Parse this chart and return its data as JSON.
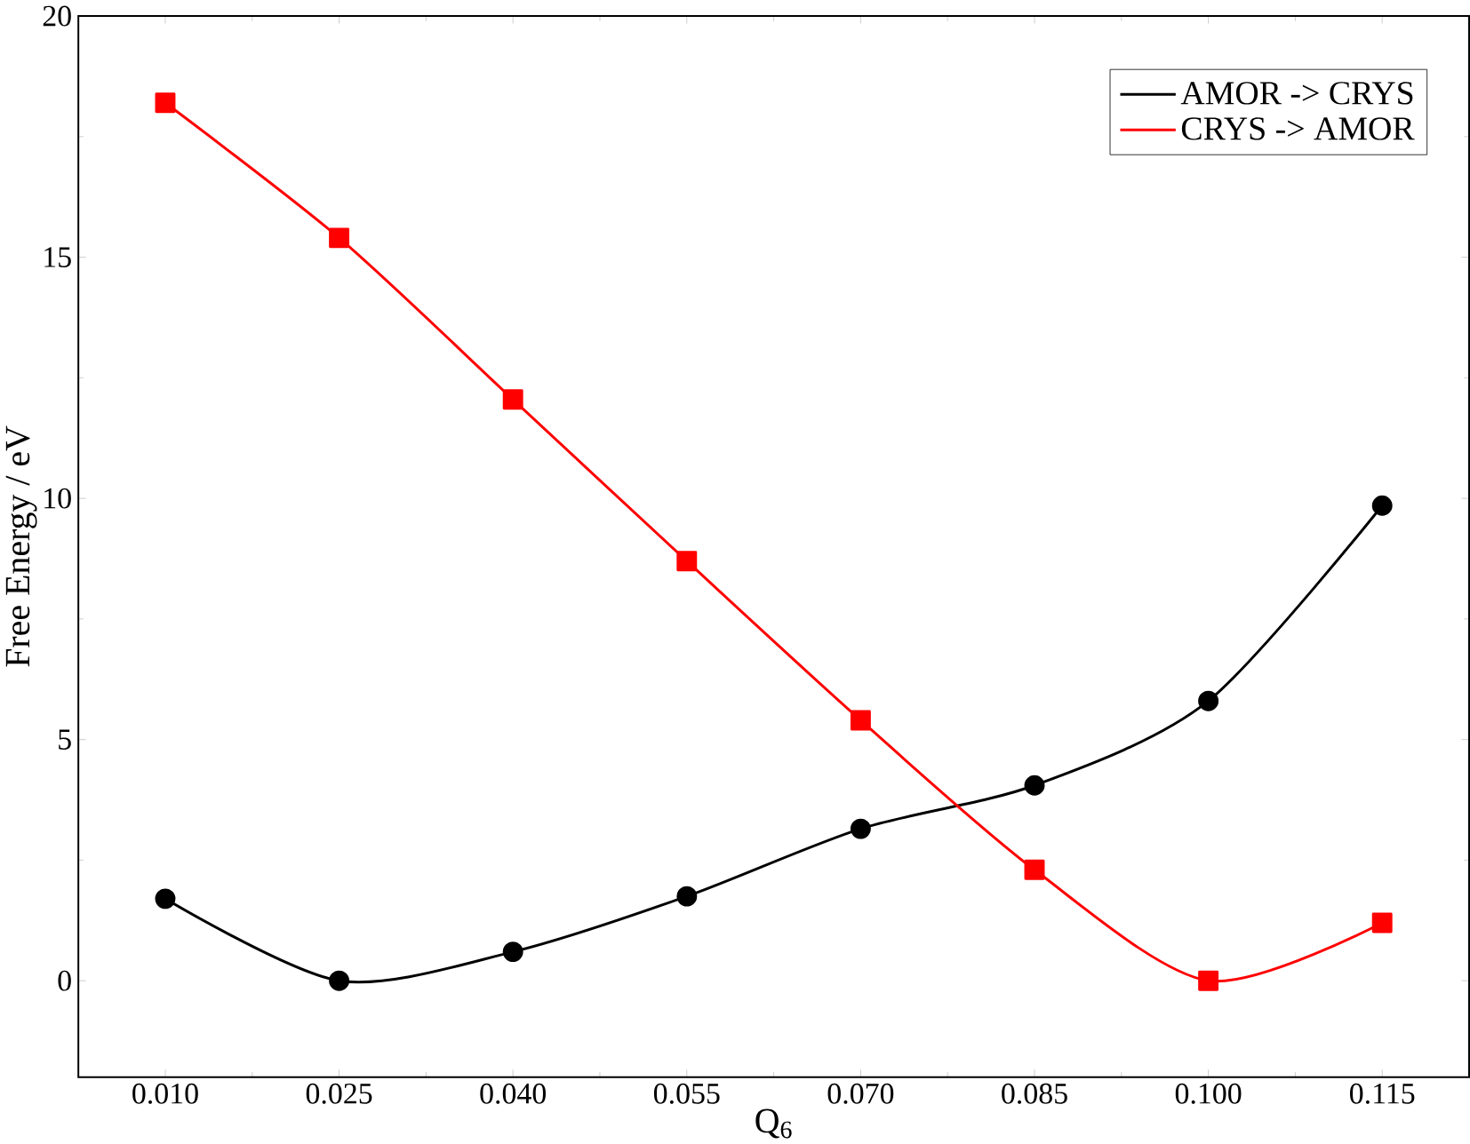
{
  "chart_data": {
    "type": "line",
    "xlabel": "Q$_{6}$",
    "ylabel": "Free Energy / eV",
    "x": [
      0.01,
      0.025,
      0.04,
      0.055,
      0.07,
      0.085,
      0.1,
      0.115
    ],
    "series": [
      {
        "name": "AMOR -> CRYS",
        "color": "#000000",
        "marker": "circle",
        "values": [
          1.7,
          0,
          0.6,
          1.75,
          3.15,
          4.05,
          5.8,
          9.85
        ]
      },
      {
        "name": "CRYS   -> AMOR",
        "color": "#ff0000",
        "marker": "square",
        "values": [
          18.2,
          15.4,
          12.05,
          8.7,
          5.4,
          2.3,
          0,
          1.2
        ]
      }
    ],
    "xlim": [
      0.0025,
      0.1225
    ],
    "ylim": [
      -2,
      20
    ],
    "xticks": [
      {
        "value": 0.01,
        "label": "0.010"
      },
      {
        "value": 0.025,
        "label": "0.025"
      },
      {
        "value": 0.04,
        "label": "0.040"
      },
      {
        "value": 0.055,
        "label": "0.055"
      },
      {
        "value": 0.07,
        "label": "0.070"
      },
      {
        "value": 0.085,
        "label": "0.085"
      },
      {
        "value": 0.1,
        "label": "0.100"
      },
      {
        "value": 0.115,
        "label": "0.115"
      }
    ],
    "yticks": [
      0,
      5,
      10,
      15,
      20
    ],
    "grid": false,
    "legend": "top right",
    "line_style": "solid"
  }
}
